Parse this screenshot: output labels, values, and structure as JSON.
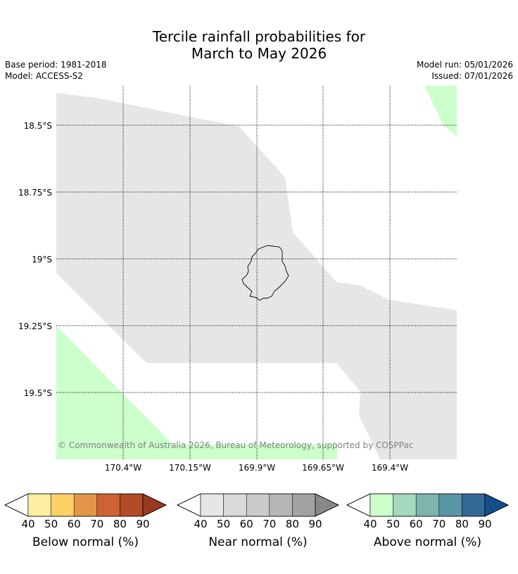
{
  "title_line1": "Tercile rainfall probabilities for",
  "title_line2": "March to May 2026",
  "meta_left": {
    "base_period": "Base period: 1981-2018",
    "model": "Model: ACCESS-S2"
  },
  "meta_right": {
    "model_run": "Model run: 05/01/2026",
    "issued": "Issued: 07/01/2026"
  },
  "map": {
    "lat_labels": [
      "18.5°S",
      "18.75°S",
      "19°S",
      "19.25°S",
      "19.5°S"
    ],
    "lon_labels": [
      "170.4°W",
      "170.15°W",
      "169.9°W",
      "169.65°W",
      "169.4°W"
    ],
    "copyright": "© Commonwealth of Australia 2026, Bureau of Meteorology, supported by COSPPac"
  },
  "colorbars": [
    {
      "name": "below",
      "label": "Below normal (%)",
      "ticks": [
        "40",
        "50",
        "60",
        "70",
        "80",
        "90"
      ],
      "colors": [
        "#fdeea2",
        "#fdd067",
        "#e1964a",
        "#cd6232",
        "#b14b28",
        "#97391d"
      ]
    },
    {
      "name": "near",
      "label": "Near normal (%)",
      "ticks": [
        "40",
        "50",
        "60",
        "70",
        "80",
        "90"
      ],
      "colors": [
        "#e6e6e6",
        "#d9d9d9",
        "#cbcbcb",
        "#b6b6b6",
        "#a2a2a2",
        "#888888"
      ]
    },
    {
      "name": "above",
      "label": "Above normal (%)",
      "ticks": [
        "40",
        "50",
        "60",
        "70",
        "80",
        "90"
      ],
      "colors": [
        "#ccffcc",
        "#a5d8bc",
        "#7fb3ae",
        "#5995a2",
        "#346897",
        "#154e8c"
      ]
    }
  ]
}
